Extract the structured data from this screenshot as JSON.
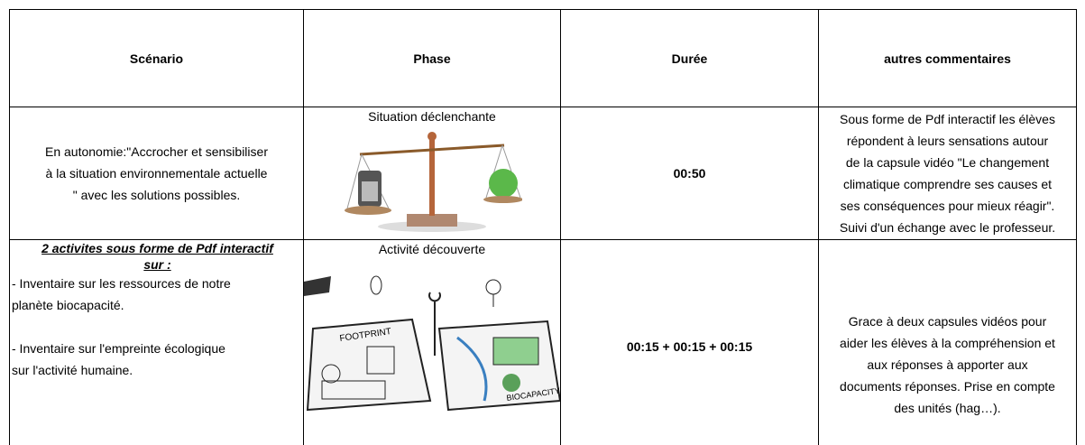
{
  "table": {
    "header": [
      "Scénario",
      "Phase",
      "Durée",
      "autres commentaires"
    ],
    "rows": [
      {
        "scenario": [
          "En autonomie:\"Accrocher et sensibiliser",
          "à la situation environnementale actuelle",
          "\" avec les solutions possibles."
        ],
        "phase": "Situation déclenchante",
        "duration": "00:50",
        "comments": [
          "Sous forme de Pdf interactif les élèves",
          "répondent à leurs sensations autour",
          "de la capsule vidéo \"Le changement",
          "climatique  comprendre ses causes et",
          "ses conséquences pour mieux réagir\".",
          "Suivi d'un échange avec le professeur."
        ]
      },
      {
        "scenario_title": [
          "2 activites sous forme de Pdf interactif",
          "sur :"
        ],
        "scenario": [
          [
            "- Inventaire sur les ressources de notre",
            "planète biocapacité."
          ],
          [
            "- Inventaire sur l'empreinte écologique",
            "sur l'activité humaine."
          ]
        ],
        "phase": "Activité découverte",
        "image_labels": [
          "FOOTPRINT",
          "BIOCAPACITY"
        ],
        "duration": "00:15 + 00:15 + 00:15",
        "comments": [
          "Grace à deux capsules vidéos pour",
          "aider les élèves à la compréhension et",
          "aux réponses à apporter aux",
          "documents réponses. Prise en compte",
          "des unités (hag…)."
        ]
      }
    ]
  }
}
